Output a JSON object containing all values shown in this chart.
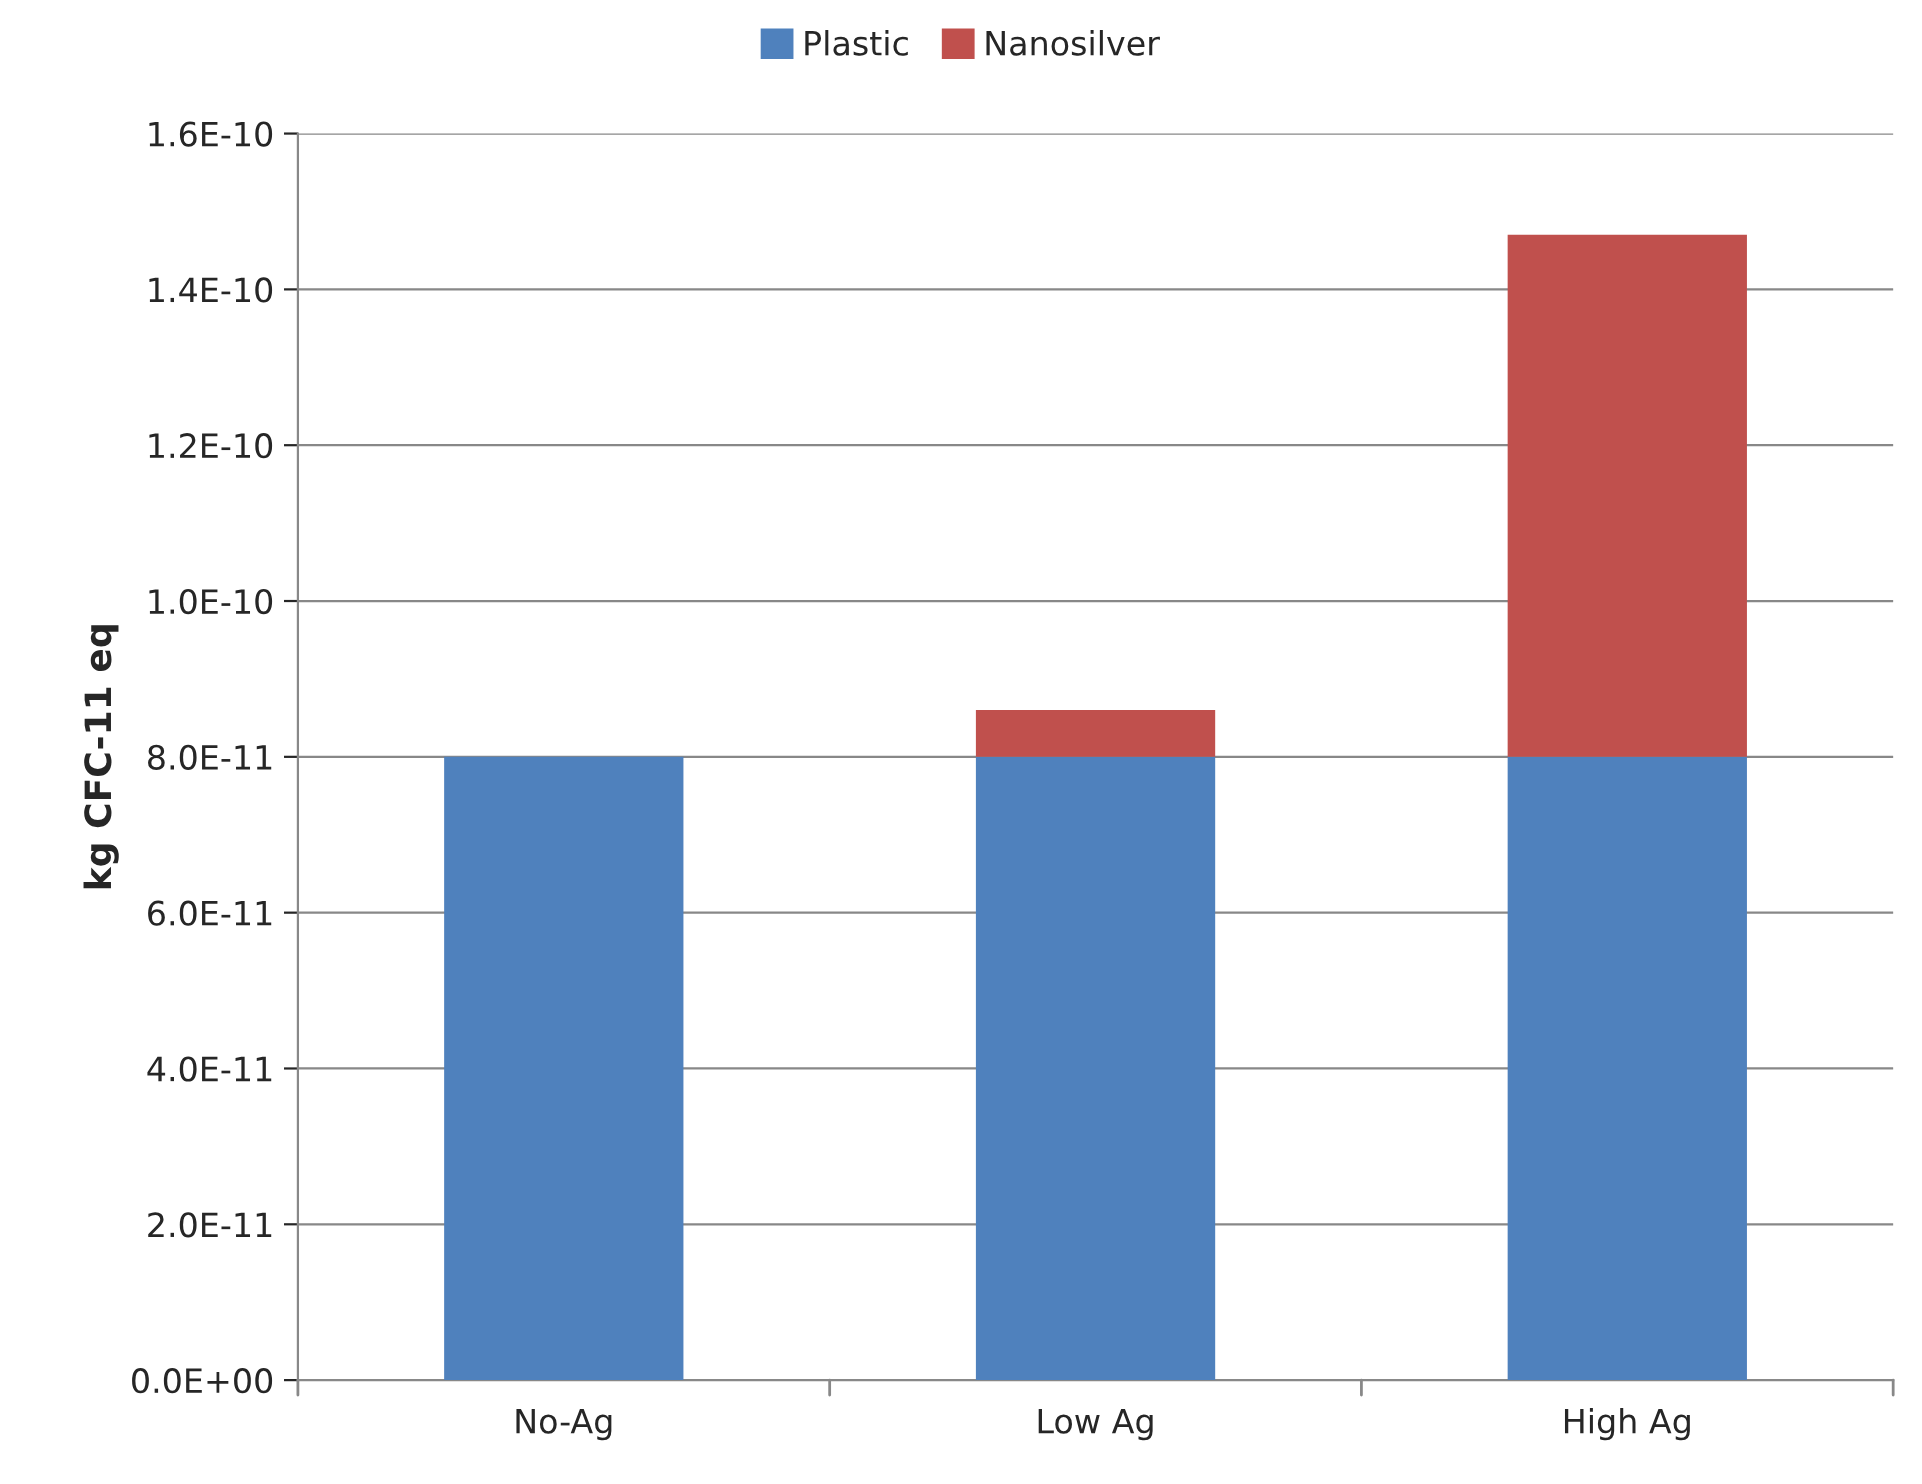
{
  "chart_data": {
    "type": "bar",
    "stacked": true,
    "ylabel": "kg CFC-11 eq",
    "categories": [
      "No-Ag",
      "Low Ag",
      "High Ag"
    ],
    "series": [
      {
        "name": "Plastic",
        "color": "#4f81bd",
        "values": [
          8e-11,
          8e-11,
          8e-11
        ]
      },
      {
        "name": "Nanosilver",
        "color": "#c0504d",
        "values": [
          null,
          6e-12,
          6.7e-11
        ]
      }
    ],
    "ylim": [
      0,
      1.6e-10
    ],
    "yticks": [
      {
        "value": 0,
        "label": "0.0E+00"
      },
      {
        "value": 2e-11,
        "label": "2.0E-11"
      },
      {
        "value": 4e-11,
        "label": "4.0E-11"
      },
      {
        "value": 6e-11,
        "label": "6.0E-11"
      },
      {
        "value": 8e-11,
        "label": "8.0E-11"
      },
      {
        "value": 1e-10,
        "label": "1.0E-10"
      },
      {
        "value": 1.2e-10,
        "label": "1.2E-10"
      },
      {
        "value": 1.4e-10,
        "label": "1.4E-10"
      },
      {
        "value": 1.6e-10,
        "label": "1.6E-10"
      }
    ],
    "grid": "y",
    "legend": "top"
  }
}
